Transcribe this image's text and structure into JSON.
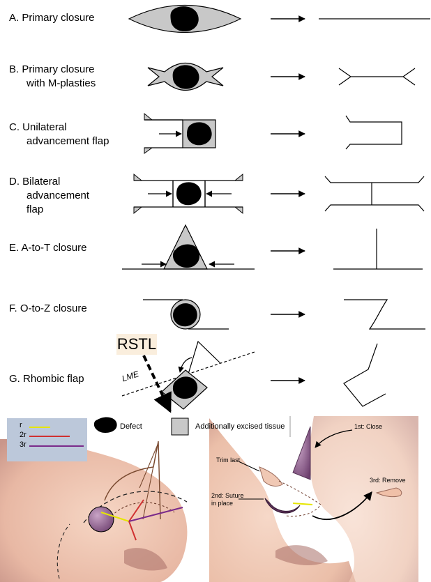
{
  "rows": [
    {
      "id": "a",
      "lines": [
        "A. Primary closure"
      ]
    },
    {
      "id": "b",
      "lines": [
        "B.  Primary closure",
        "with M-plasties"
      ]
    },
    {
      "id": "c",
      "lines": [
        "C.  Unilateral",
        "advancement flap"
      ]
    },
    {
      "id": "d",
      "lines": [
        "D.  Bilateral",
        "advancement",
        "flap"
      ]
    },
    {
      "id": "e",
      "lines": [
        "E.  A-to-T closure"
      ]
    },
    {
      "id": "f",
      "lines": [
        "F.  O-to-Z closure"
      ]
    },
    {
      "id": "g",
      "lines": [
        "G.  Rhombic flap"
      ]
    }
  ],
  "rstl_label": "RSTL",
  "lme_label": "LME",
  "legend": {
    "items": [
      {
        "label": "r",
        "color": "#e6e600"
      },
      {
        "label": "2r",
        "color": "#d03030"
      },
      {
        "label": "3r",
        "color": "#7a2a8a"
      }
    ]
  },
  "key": {
    "defect_label": "Defect",
    "excised_label": "Additionally excised tissue"
  },
  "nose_notes": {
    "first": "1st: Close",
    "trim": "Trim last",
    "second": [
      "2nd: Suture",
      "in place"
    ],
    "third": "3rd: Remove"
  },
  "colors": {
    "gray_fill": "#c8c8c8",
    "skin": "#f0c8b4",
    "nose_shadow": "#c9968a",
    "flap_purple": "#9a7098"
  }
}
